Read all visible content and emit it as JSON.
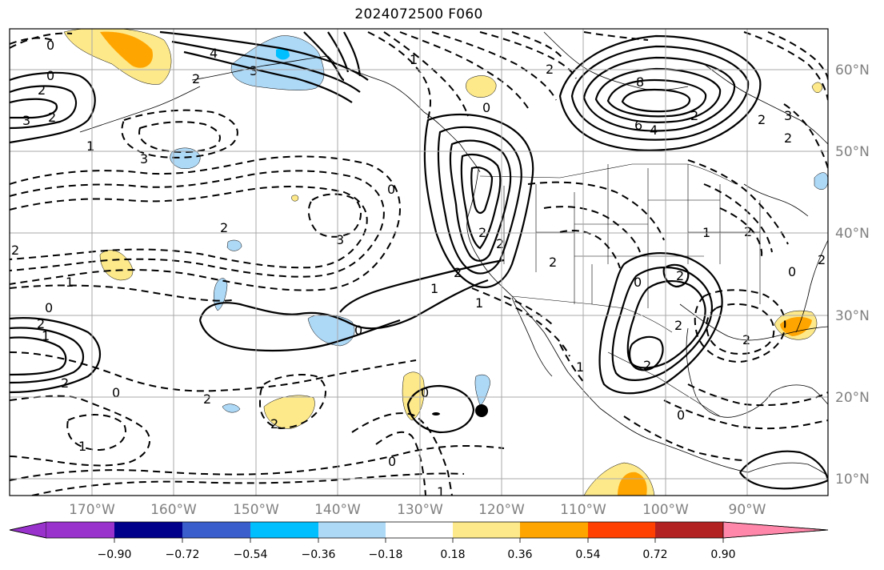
{
  "title": "2024072500 F060",
  "map": {
    "lat_labels": [
      "60°N",
      "50°N",
      "40°N",
      "30°N",
      "20°N",
      "10°N"
    ],
    "lon_labels": [
      "170°W",
      "160°W",
      "150°W",
      "140°W",
      "130°W",
      "120°W",
      "110°W",
      "100°W",
      "90°W"
    ],
    "contour_labels": [
      "0",
      "4",
      "3",
      "2",
      "0",
      "2",
      "3",
      "2",
      "1",
      "3",
      "2",
      "3",
      "2",
      "1",
      "0",
      "2",
      "1",
      "2",
      "2",
      "0",
      "1",
      "0",
      "2",
      "1",
      "0",
      "0",
      "2",
      "8",
      "6",
      "4",
      "2",
      "3",
      "2",
      "0",
      "2",
      "1",
      "2",
      "2",
      "0",
      "2",
      "0",
      "2",
      "1",
      "0",
      "1",
      "1",
      "2",
      "2",
      "2",
      "0",
      "2",
      "2",
      "2",
      "1"
    ],
    "marker": "storm-center"
  },
  "colorbar": {
    "ticks": [
      "−0.90",
      "−0.72",
      "−0.54",
      "−0.36",
      "−0.18",
      "0.18",
      "0.36",
      "0.54",
      "0.72",
      "0.90"
    ],
    "colors": [
      "#9932cc",
      "#00008b",
      "#3a5fcd",
      "#00bfff",
      "#add8f6",
      "#ffffff",
      "#fde98a",
      "#ffa500",
      "#ff4000",
      "#b22222",
      "#ff88aa"
    ]
  }
}
